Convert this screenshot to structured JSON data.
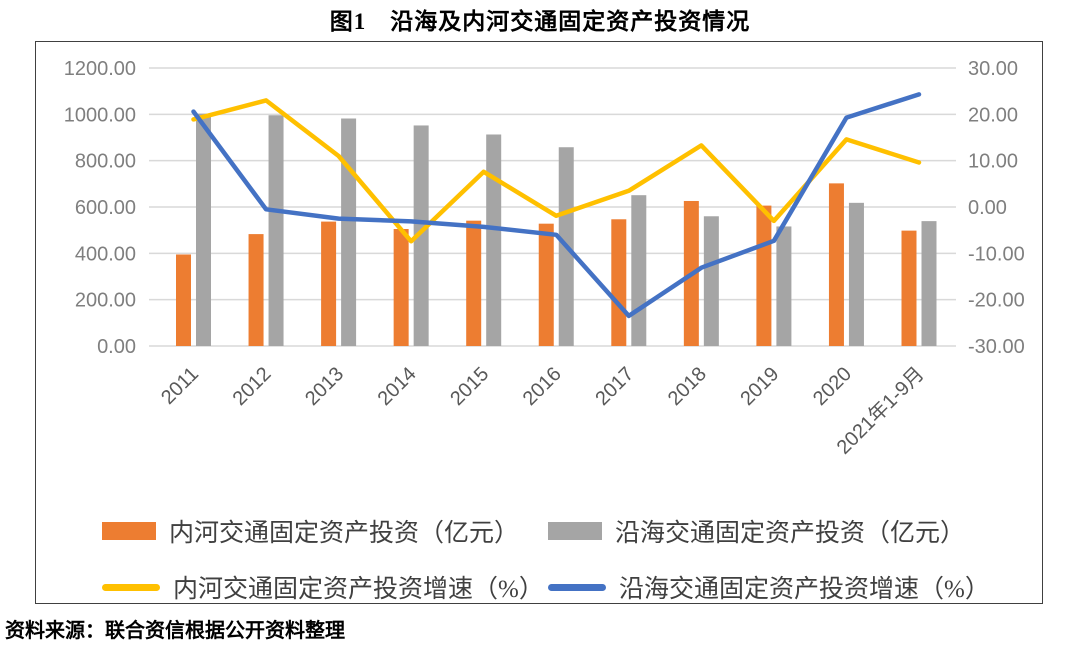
{
  "title": "图1　沿海及内河交通固定资产投资情况",
  "source": "资料来源：联合资信根据公开资料整理",
  "colors": {
    "grid": "#D9D9D9",
    "axis_text": "#7F7F7F",
    "x_axis_text": "#595959",
    "legend_text": "#404040",
    "frame_border": "#404040"
  },
  "chart_data": {
    "type": "combo",
    "categories": [
      "2011",
      "2012",
      "2013",
      "2014",
      "2015",
      "2016",
      "2017",
      "2018",
      "2019",
      "2020",
      "2021年1-9月"
    ],
    "series": [
      {
        "key": "inland-investment",
        "name": "内河交通固定资产投资（亿元）",
        "type": "bar",
        "axis": "left",
        "color": "#ED7D31",
        "values": [
          395,
          483,
          537,
          505,
          541,
          528,
          547,
          626,
          606,
          702,
          498
        ]
      },
      {
        "key": "coastal-investment",
        "name": "沿海交通固定资产投资（亿元）",
        "type": "bar",
        "axis": "left",
        "color": "#A5A5A5",
        "values": [
          1003,
          996,
          982,
          952,
          913,
          858,
          651,
          560,
          516,
          618,
          539
        ]
      },
      {
        "key": "inland-growth",
        "name": "内河交通固定资产投资增速（%）",
        "type": "line",
        "axis": "right",
        "color": "#FFC000",
        "values": [
          18.9,
          23.0,
          11.0,
          -7.4,
          7.6,
          -1.9,
          3.5,
          13.3,
          -3.0,
          14.6,
          9.6
        ]
      },
      {
        "key": "coastal-growth",
        "name": "沿海交通固定资产投资增速（%）",
        "type": "line",
        "axis": "right",
        "color": "#4472C4",
        "values": [
          20.6,
          -0.5,
          -2.5,
          -3.1,
          -4.3,
          -6.0,
          -23.5,
          -13.1,
          -7.3,
          19.3,
          24.3
        ]
      }
    ],
    "left_axis": {
      "min": 0,
      "max": 1200,
      "step": 200,
      "decimals": 2
    },
    "right_axis": {
      "min": -30,
      "max": 30,
      "step": 10,
      "decimals": 2
    },
    "grid": true,
    "legend_position": "bottom"
  }
}
